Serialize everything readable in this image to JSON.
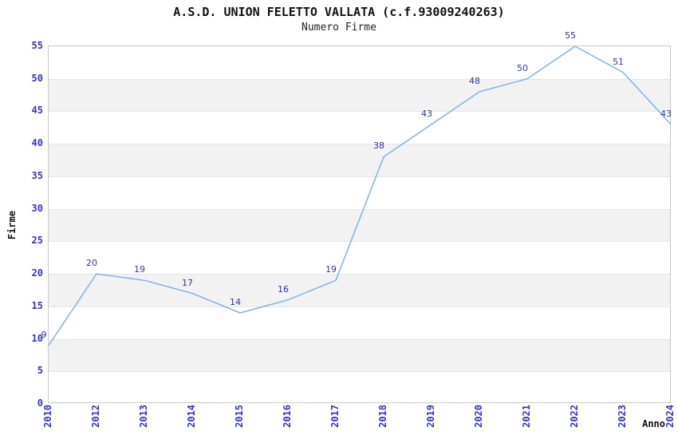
{
  "chart_data": {
    "type": "line",
    "title": "A.S.D. UNION FELETTO VALLATA (c.f.93009240263)",
    "subtitle": "Numero Firme",
    "xlabel": "Anno",
    "ylabel": "Firme",
    "categories": [
      "2010",
      "2012",
      "2013",
      "2014",
      "2015",
      "2016",
      "2017",
      "2018",
      "2019",
      "2020",
      "2021",
      "2022",
      "2023",
      "2024"
    ],
    "values": [
      9,
      20,
      19,
      17,
      14,
      16,
      19,
      38,
      43,
      48,
      50,
      55,
      51,
      43
    ],
    "ylim": [
      0,
      55
    ],
    "ytick_step": 5,
    "grid": "horizontal",
    "legend": "none",
    "colors": {
      "line": "#7fb3e8",
      "tick_label": "#3333cc",
      "data_label": "#333399",
      "band": "#f2f2f2",
      "gridline": "#e5e5e5",
      "plot_border": "#c9c9c9",
      "text": "#111111"
    }
  }
}
